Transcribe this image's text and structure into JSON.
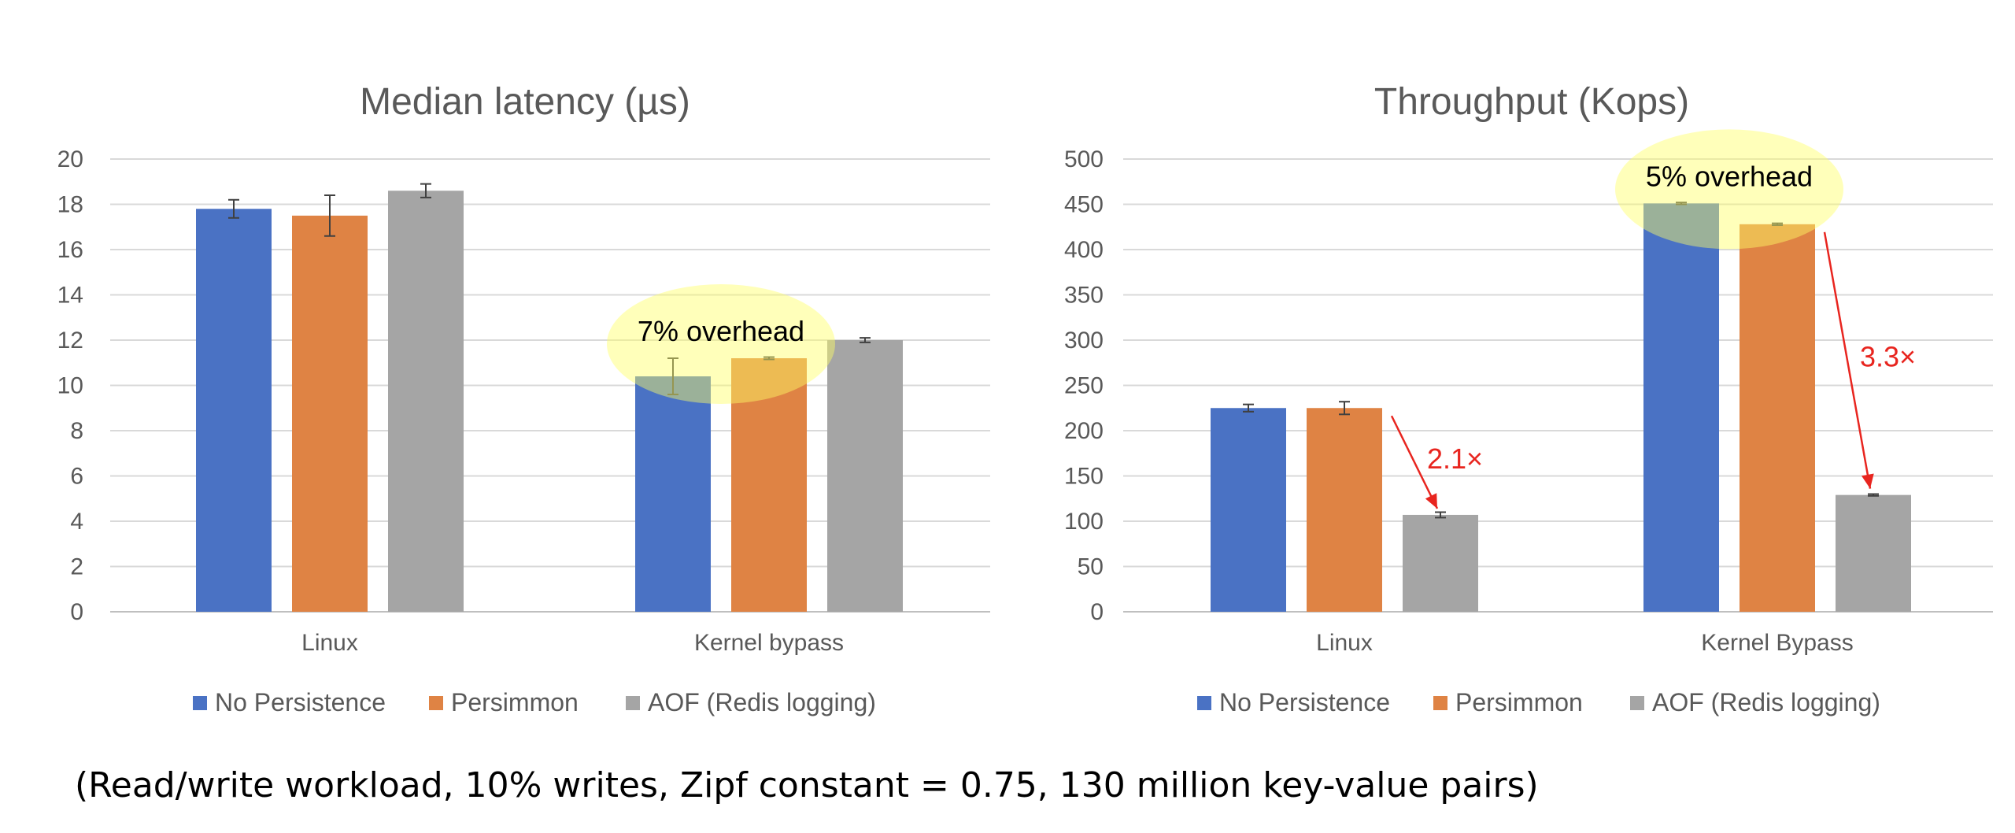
{
  "chart_data": [
    {
      "type": "bar",
      "title": "Median latency (µs)",
      "categories": [
        "Linux",
        "Kernel bypass"
      ],
      "ylim": [
        0,
        20
      ],
      "yticks": [
        0,
        2,
        4,
        6,
        8,
        10,
        12,
        14,
        16,
        18,
        20
      ],
      "grid": true,
      "legend_position": "bottom",
      "series": [
        {
          "name": "No Persistence",
          "color": "#4A72C4",
          "values": [
            17.8,
            10.4
          ],
          "error": [
            0.4,
            0.8
          ]
        },
        {
          "name": "Persimmon",
          "color": "#DF8344",
          "values": [
            17.5,
            11.2
          ],
          "error": [
            0.9,
            0.05
          ]
        },
        {
          "name": "AOF (Redis logging)",
          "color": "#A5A5A5",
          "values": [
            18.6,
            12.0
          ],
          "error": [
            0.3,
            0.1
          ]
        }
      ],
      "annotations": [
        {
          "text": "7% overhead",
          "type": "highlight",
          "category_index": 1
        }
      ]
    },
    {
      "type": "bar",
      "title": "Throughput (Kops)",
      "categories": [
        "Linux",
        "Kernel Bypass"
      ],
      "ylim": [
        0,
        500
      ],
      "yticks": [
        0,
        50,
        100,
        150,
        200,
        250,
        300,
        350,
        400,
        450,
        500
      ],
      "grid": true,
      "legend_position": "bottom",
      "series": [
        {
          "name": "No Persistence",
          "color": "#4A72C4",
          "values": [
            225,
            451
          ],
          "error": [
            4,
            1
          ]
        },
        {
          "name": "Persimmon",
          "color": "#DF8344",
          "values": [
            225,
            428
          ],
          "error": [
            7,
            1
          ]
        },
        {
          "name": "AOF (Redis logging)",
          "color": "#A5A5A5",
          "values": [
            107,
            129
          ],
          "error": [
            3,
            1
          ]
        }
      ],
      "annotations": [
        {
          "text": "5% overhead",
          "type": "highlight",
          "category_index": 1
        },
        {
          "text": "2.1×",
          "type": "arrow",
          "category_index": 0,
          "color": "#E8251F"
        },
        {
          "text": "3.3×",
          "type": "arrow",
          "category_index": 1,
          "color": "#E8251F"
        }
      ]
    }
  ],
  "caption": "(Read/write workload, 10% writes, Zipf constant = 0.75, 130 million key-value pairs)"
}
